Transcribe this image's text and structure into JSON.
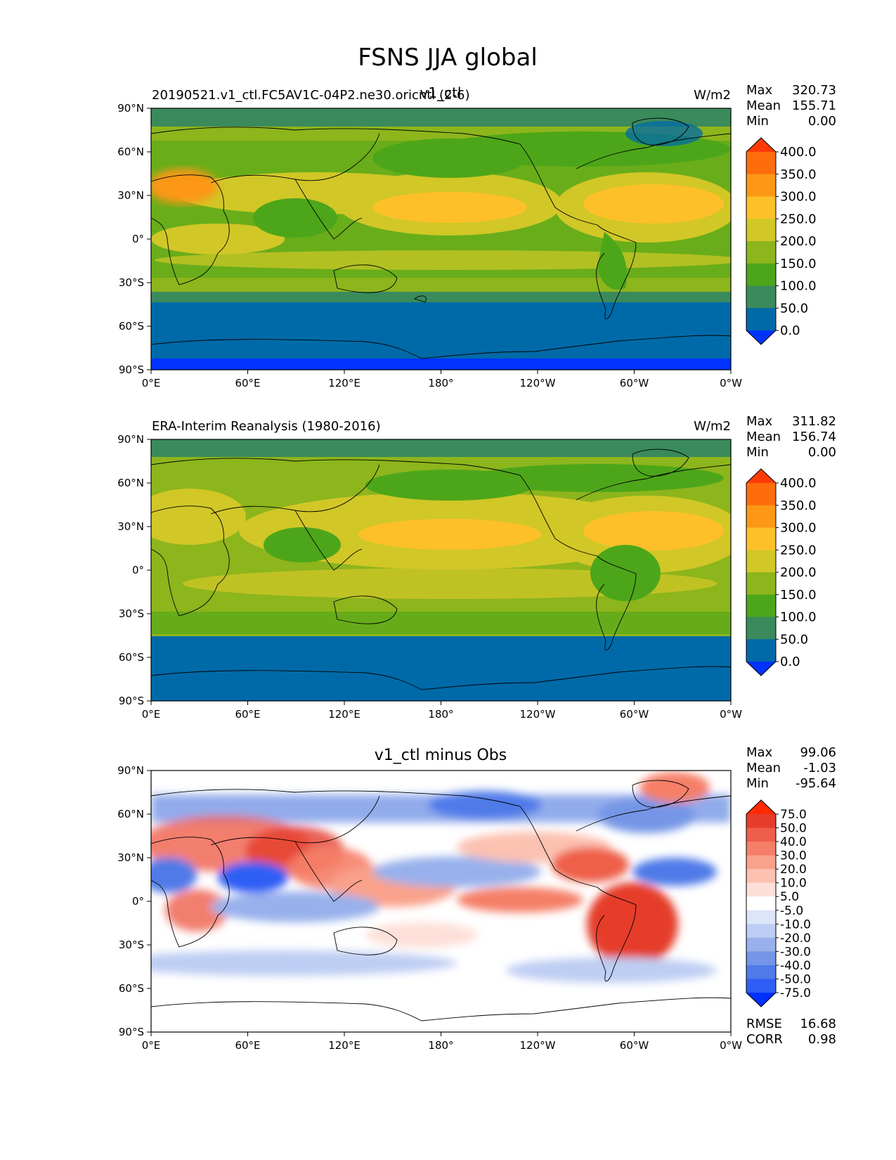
{
  "title": "FSNS JJA global",
  "lat_ticks": [
    "90°N",
    "60°N",
    "30°N",
    "0°",
    "30°S",
    "60°S",
    "90°S"
  ],
  "lon_ticks": [
    "0°E",
    "60°E",
    "120°E",
    "180°",
    "120°W",
    "60°W",
    "0°W"
  ],
  "stat_labels": {
    "max": "Max",
    "mean": "Mean",
    "min": "Min",
    "rmse": "RMSE",
    "corr": "CORR"
  },
  "colors": {
    "field_levels": [
      "#0033ff",
      "#006aa8",
      "#3a8a5c",
      "#4da619",
      "#8db51c",
      "#d1c727",
      "#fdc028",
      "#fd9716",
      "#fe6d0c",
      "#ff3b05"
    ],
    "diff_levels": [
      "#0030ff",
      "#2e5ef5",
      "#4f7ae8",
      "#7596e6",
      "#98b1ec",
      "#bdcdf3",
      "#dde5f9",
      "#ffffff",
      "#fde0d8",
      "#fcc1b1",
      "#f9a18a",
      "#f57f68",
      "#ef5e4a",
      "#e53c2c",
      "#ff2a00"
    ]
  },
  "panels": [
    {
      "left_title": "20190521.v1_ctl.FC5AV1C-04P2.ne30.oricntl (2-6)",
      "center_title": "v1_ctl",
      "units": "W/m2",
      "stats": {
        "max": "320.73",
        "mean": "155.71",
        "min": "0.00"
      },
      "colorbar_labels": [
        "400.0",
        "350.0",
        "300.0",
        "250.0",
        "200.0",
        "150.0",
        "100.0",
        "50.0",
        "0.0"
      ]
    },
    {
      "left_title": "ERA-Interim Reanalysis (1980-2016)",
      "center_title": "",
      "units": "W/m2",
      "stats": {
        "max": "311.82",
        "mean": "156.74",
        "min": "0.00"
      },
      "colorbar_labels": [
        "400.0",
        "350.0",
        "300.0",
        "250.0",
        "200.0",
        "150.0",
        "100.0",
        "50.0",
        "0.0"
      ]
    },
    {
      "left_title": "",
      "center_title": "v1_ctl minus Obs",
      "units": "",
      "stats": {
        "max": "99.06",
        "mean": "-1.03",
        "min": "-95.64",
        "rmse": "16.68",
        "corr": "0.98"
      },
      "colorbar_labels": [
        "75.0",
        "50.0",
        "40.0",
        "30.0",
        "20.0",
        "10.0",
        "5.0",
        "-5.0",
        "-10.0",
        "-20.0",
        "-30.0",
        "-40.0",
        "-50.0",
        "-75.0"
      ]
    }
  ]
}
